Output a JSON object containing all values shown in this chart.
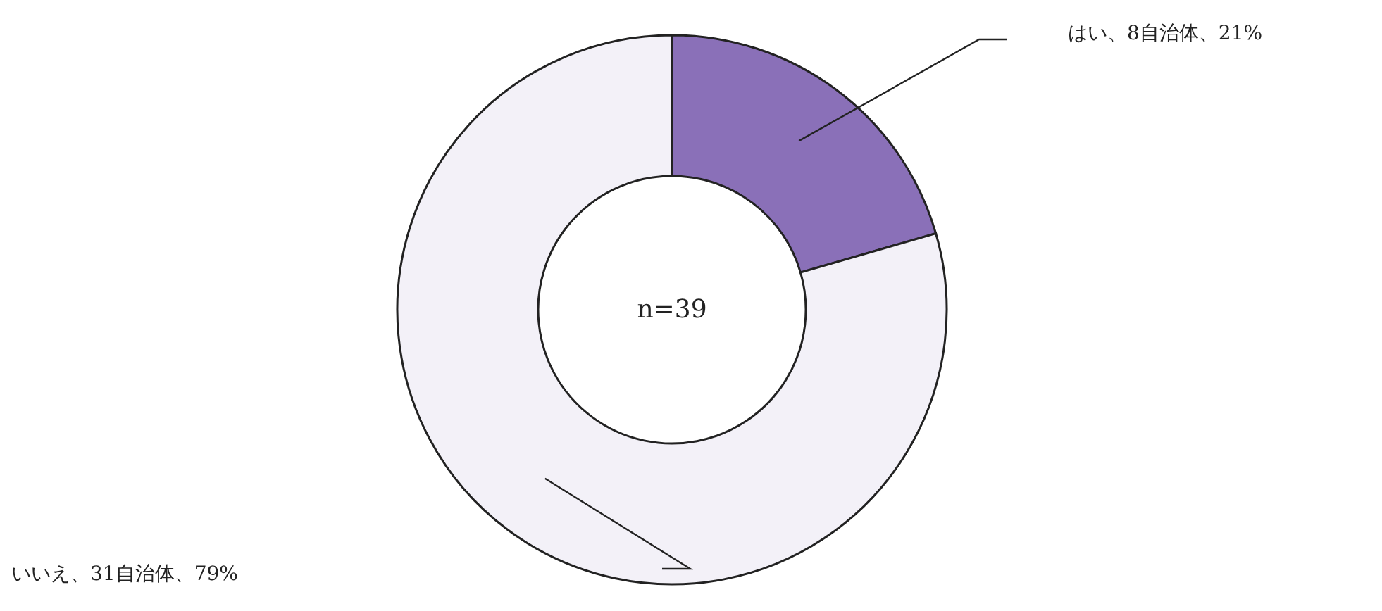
{
  "chart_data": {
    "type": "donut",
    "categories": [
      "はい、8自治体、21%",
      "いいえ、31自治体、79%"
    ],
    "values": [
      8,
      31
    ],
    "colors": [
      "#8a70b8",
      "#f3f1f8"
    ],
    "annotations": [
      "n=39"
    ]
  }
}
